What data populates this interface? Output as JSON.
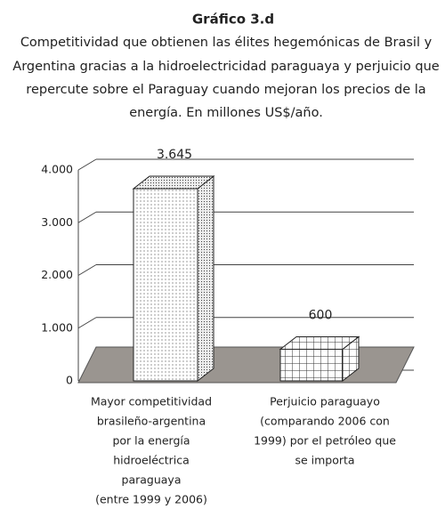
{
  "chart_data": {
    "type": "bar3d",
    "title": "Gráfico 3.d",
    "subtitle": [
      "Competitividad que obtienen las élites hegemónicas de Brasil y",
      "Argentina gracias a la hidroelectricidad paraguaya y perjuicio que",
      "repercute sobre el Paraguay cuando mejoran los precios de la",
      "energía. En millones US$/año."
    ],
    "categories": [
      [
        "Mayor competitividad",
        "brasileño-argentina",
        "por la energía",
        "hidroeléctrica",
        "paraguaya",
        "(entre 1999 y 2006)"
      ],
      [
        "Perjuicio paraguayo",
        "(comparando 2006 con",
        "1999) por el petróleo que",
        "se importa"
      ]
    ],
    "values": [
      3645,
      600
    ],
    "value_labels": [
      "3.645",
      "600"
    ],
    "ylim": [
      0,
      4000
    ],
    "yticks": [
      0,
      {
        "value": 1000,
        "label": "1.000"
      },
      {
        "value": 2000,
        "label": "2.000"
      },
      {
        "value": 3000,
        "label": "3.000"
      },
      {
        "value": 4000,
        "label": "4.000"
      }
    ],
    "grid": true
  }
}
